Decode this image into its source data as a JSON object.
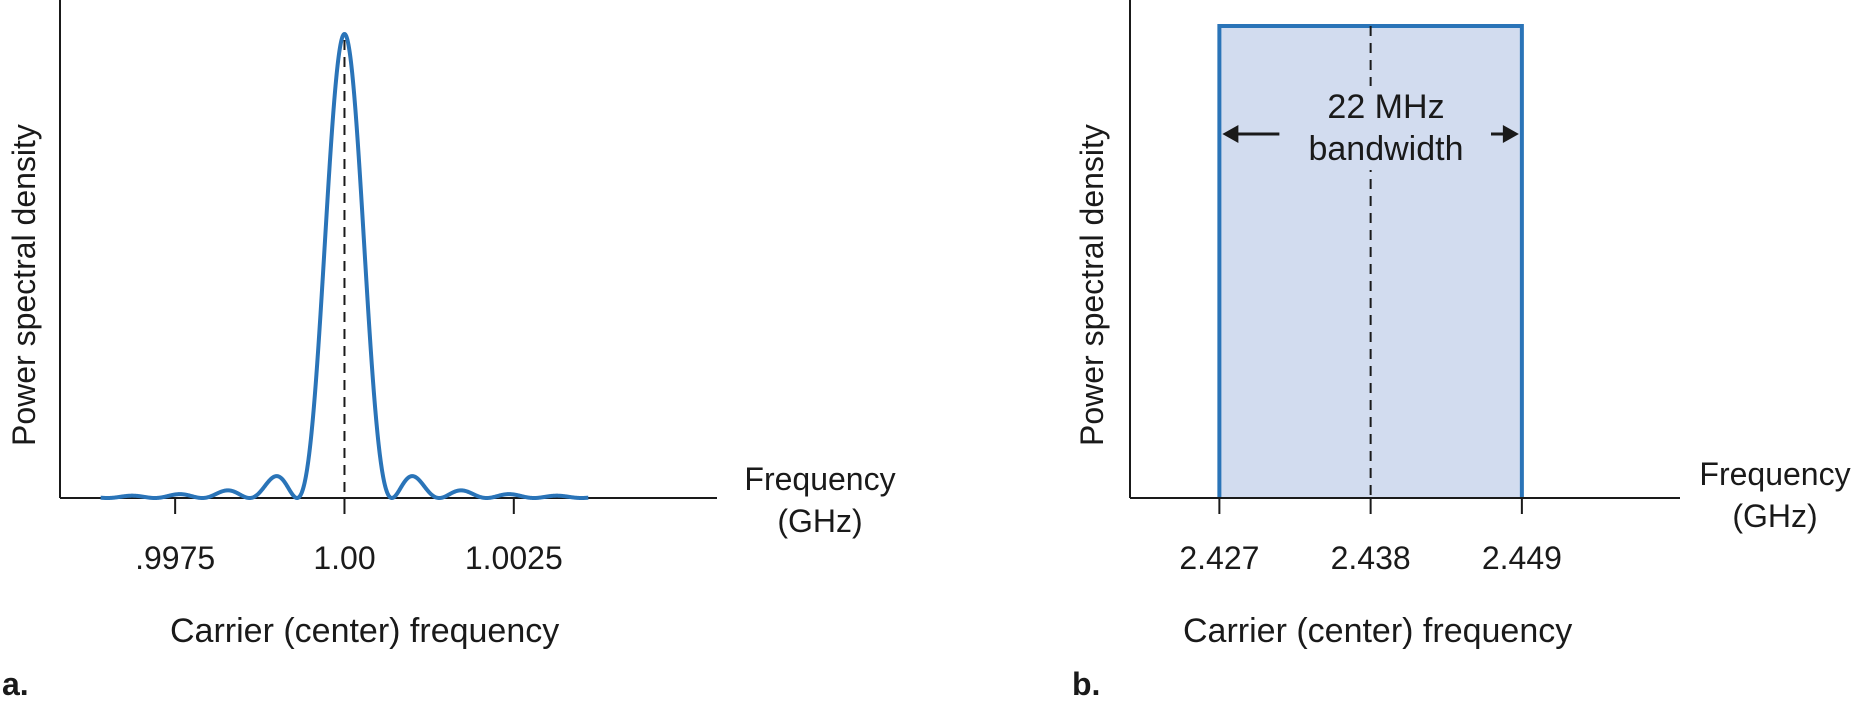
{
  "colors": {
    "curve": "#2a74b8",
    "fill": "#d2dcef",
    "axis": "#1a1a1a"
  },
  "chart_data": [
    {
      "panel": "a",
      "type": "line",
      "title": "",
      "panel_label": "a.",
      "ylabel": "Power spectral density",
      "xlabel_line1": "Frequency",
      "xlabel_line2": "(GHz)",
      "caption": "Carrier (center) frequency",
      "xlim": [
        0.9958,
        1.0055
      ],
      "ylim": [
        0,
        1
      ],
      "center": 1.0,
      "null_spacing": 0.0007,
      "tick_values": [
        0.9975,
        1.0,
        1.0025
      ],
      "tick_labels": [
        ".9975",
        "1.00",
        "1.0025"
      ],
      "curve_range": [
        0.9964,
        1.0036
      ],
      "grid": false
    },
    {
      "panel": "b",
      "type": "area",
      "title": "",
      "panel_label": "b.",
      "ylabel": "Power spectral density",
      "xlabel_line1": "Frequency",
      "xlabel_line2": "(GHz)",
      "caption": "Carrier (center) frequency",
      "xlim": [
        2.4205,
        2.4605
      ],
      "ylim": [
        0,
        1
      ],
      "band": [
        2.427,
        2.449
      ],
      "center": 2.438,
      "tick_values": [
        2.427,
        2.438,
        2.449
      ],
      "tick_labels": [
        "2.427",
        "2.438",
        "2.449"
      ],
      "annotation_line1": "22 MHz",
      "annotation_line2": "bandwidth",
      "grid": false
    }
  ]
}
